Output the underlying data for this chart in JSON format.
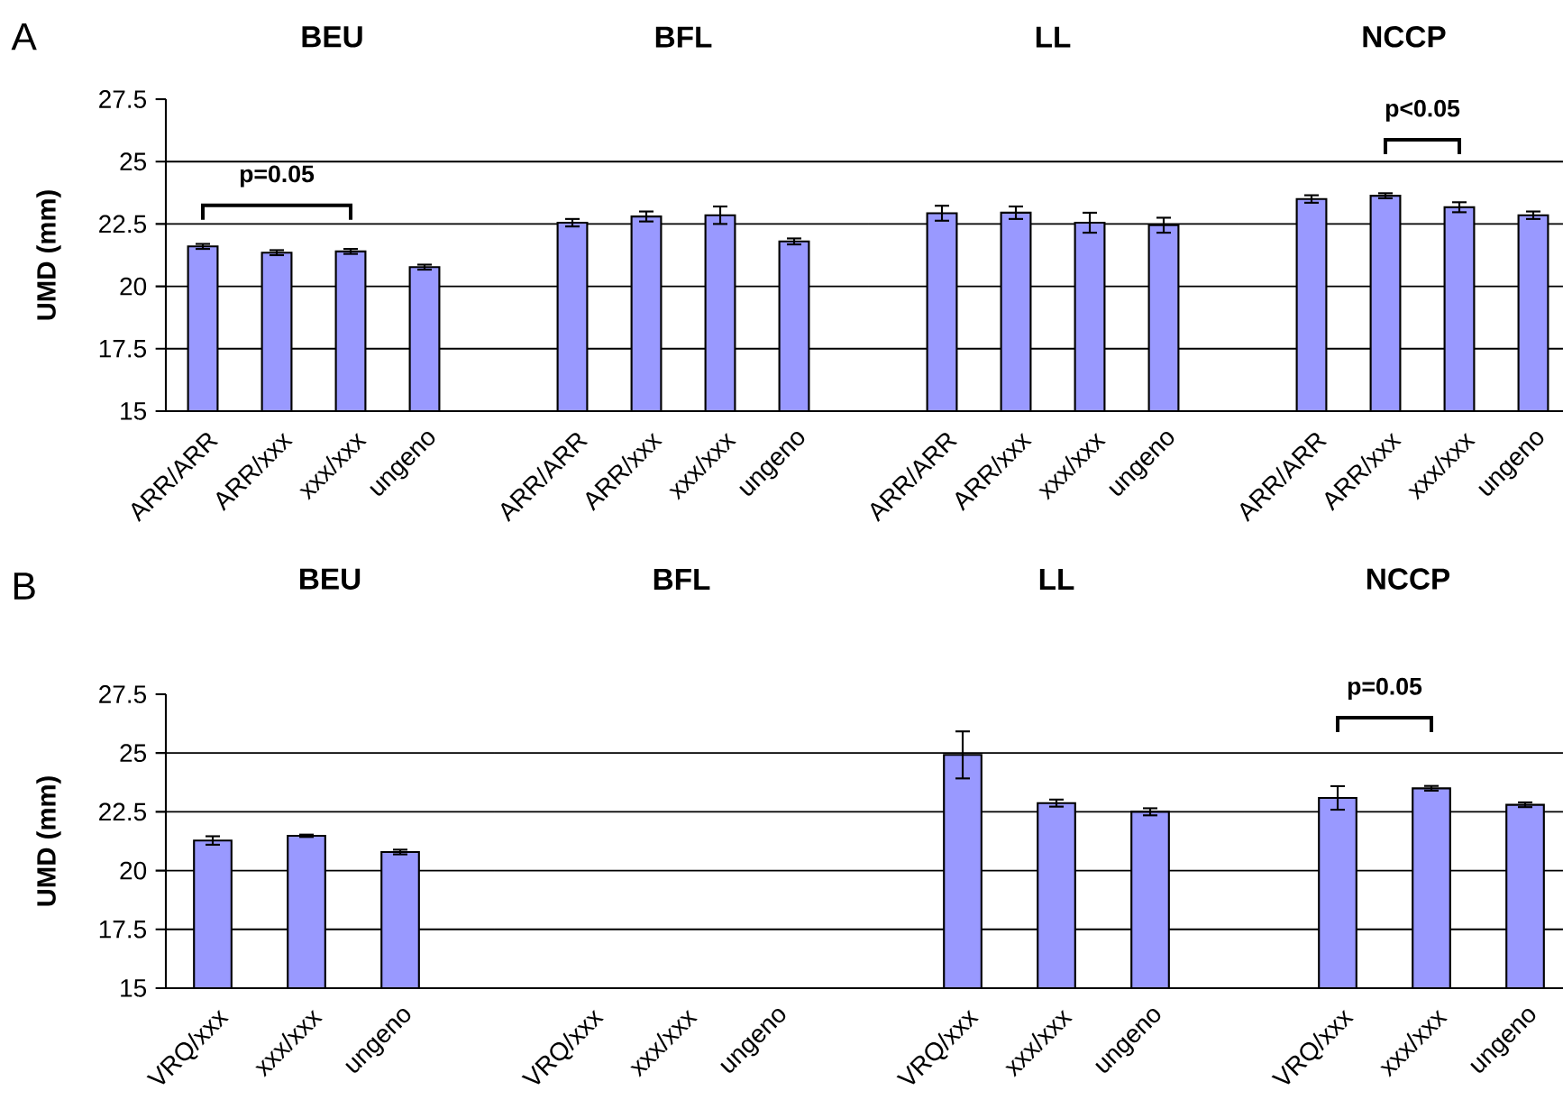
{
  "chart_data": [
    {
      "type": "bar",
      "title": "BEU",
      "ylabel": "UMD (mm)",
      "categories": [
        "ARR/ARR",
        "ARR/xxx",
        "xxx/xxx",
        "ungeno"
      ],
      "values": [
        21.6,
        21.35,
        21.4,
        20.77
      ],
      "errors": [
        0.1,
        0.1,
        0.1,
        0.1
      ],
      "color": "#9999ff",
      "ylim": [
        15,
        27.5
      ],
      "yticks": [
        15,
        17.5,
        20,
        22.5,
        25,
        27.5
      ],
      "grid": "y",
      "annotations": [
        "A",
        "p=0.05"
      ]
    },
    {
      "type": "bar",
      "title": "BFL",
      "categories": [
        "ARR/ARR",
        "ARR/xxx",
        "xxx/xxx",
        "ungeno"
      ],
      "values": [
        22.55,
        22.8,
        22.85,
        21.8
      ],
      "errors": [
        0.15,
        0.2,
        0.35,
        0.12
      ],
      "color": "#9999ff",
      "ylim": [
        15,
        27.5
      ],
      "yticks": [
        15,
        17.5,
        20,
        22.5,
        25,
        27.5
      ],
      "grid": "y",
      "tick_labels": "x"
    },
    {
      "type": "bar",
      "title": "LL",
      "categories": [
        "ARR/ARR",
        "ARR/xxx",
        "xxx/xxx",
        "ungeno"
      ],
      "values": [
        22.93,
        22.95,
        22.55,
        22.45
      ],
      "errors": [
        0.3,
        0.25,
        0.4,
        0.3
      ],
      "color": "#9999ff",
      "ylim": [
        15,
        27.5
      ],
      "yticks": [
        15,
        17.5,
        20,
        22.5,
        25,
        27.5
      ],
      "grid": "y",
      "tick_labels": "x"
    },
    {
      "type": "bar",
      "title": "NCCP",
      "categories": [
        "ARR/ARR",
        "ARR/xxx",
        "xxx/xxx",
        "ungeno"
      ],
      "values": [
        23.5,
        23.63,
        23.17,
        22.85
      ],
      "errors": [
        0.15,
        0.1,
        0.2,
        0.15
      ],
      "color": "#9999ff",
      "ylim": [
        15,
        27.5
      ],
      "yticks": [
        15,
        17.5,
        20,
        22.5,
        25,
        27.5
      ],
      "grid": "y",
      "tick_labels": "x",
      "annotations": [
        "p<0.05"
      ]
    },
    {
      "type": "bar",
      "title": "BEU",
      "ylabel": "UMD (mm)",
      "categories": [
        "VRQ/xxx",
        "xxx/xxx",
        "ungeno"
      ],
      "values": [
        21.28,
        21.48,
        20.79
      ],
      "errors": [
        0.18,
        0.05,
        0.1
      ],
      "color": "#9999ff",
      "ylim": [
        15,
        27.5
      ],
      "yticks": [
        15,
        17.5,
        20,
        22.5,
        25,
        27.5
      ],
      "grid": "y",
      "annotations": [
        "B"
      ]
    },
    {
      "type": "bar",
      "title": "BFL",
      "categories": [
        "VRQ/xxx",
        "xxx/xxx",
        "ungeno"
      ],
      "values": [
        null,
        null,
        null
      ],
      "color": "#9999ff",
      "ylim": [
        15,
        27.5
      ],
      "yticks": [
        15,
        17.5,
        20,
        22.5,
        25,
        27.5
      ],
      "grid": "y",
      "tick_labels": "x"
    },
    {
      "type": "bar",
      "title": "LL",
      "categories": [
        "VRQ/xxx",
        "xxx/xxx",
        "ungeno"
      ],
      "values": [
        24.92,
        22.87,
        22.5
      ],
      "errors": [
        1.0,
        0.15,
        0.15
      ],
      "color": "#9999ff",
      "ylim": [
        15,
        27.5
      ],
      "yticks": [
        15,
        17.5,
        20,
        22.5,
        25,
        27.5
      ],
      "grid": "y",
      "tick_labels": "x"
    },
    {
      "type": "bar",
      "title": "NCCP",
      "categories": [
        "VRQ/xxx",
        "xxx/xxx",
        "ungeno"
      ],
      "values": [
        23.09,
        23.5,
        22.8
      ],
      "errors": [
        0.5,
        0.1,
        0.1
      ],
      "color": "#9999ff",
      "ylim": [
        15,
        27.5
      ],
      "yticks": [
        15,
        17.5,
        20,
        22.5,
        25,
        27.5
      ],
      "grid": "y",
      "tick_labels": "x",
      "annotations": [
        "p=0.05"
      ]
    }
  ]
}
